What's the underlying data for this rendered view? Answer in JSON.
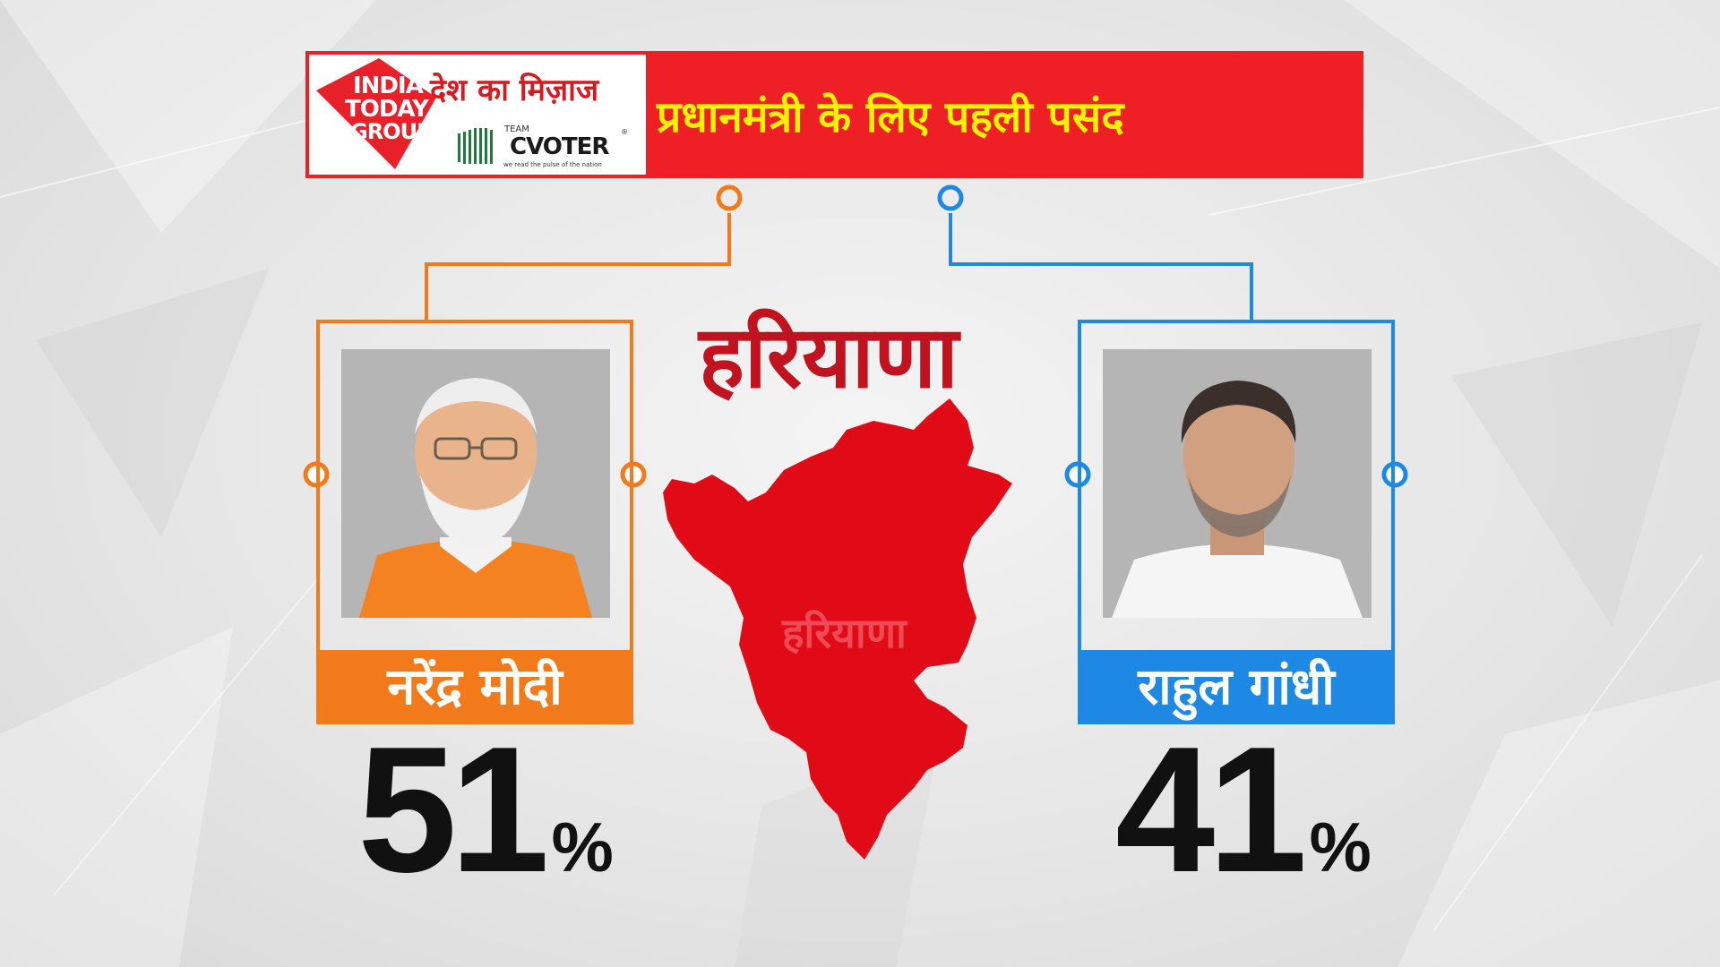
{
  "header": {
    "logo": {
      "brand_line1": "INDIA",
      "brand_line2": "TODAY",
      "brand_line3": "GROUP",
      "program": "देश का मिज़ाज",
      "team": "TEAM",
      "cvoter": "CVOTER",
      "registered": "®",
      "tagline": "we read the pulse of the nation"
    },
    "headline": "प्रधानमंत्री के लिए पहली पसंद"
  },
  "state": {
    "title": "हरियाणा",
    "map_label": "हरियाणा"
  },
  "candidates": [
    {
      "name": "नरेंद्र मोदी",
      "percent": "51",
      "percent_sign": "%",
      "color": "#f27a1a"
    },
    {
      "name": "राहुल गांधी",
      "percent": "41",
      "percent_sign": "%",
      "color": "#1e88e5"
    }
  ],
  "colors": {
    "header_red": "#ee2026",
    "headline_yellow": "#fff200",
    "state_red": "#c1121f",
    "map_red": "#e00b17"
  }
}
